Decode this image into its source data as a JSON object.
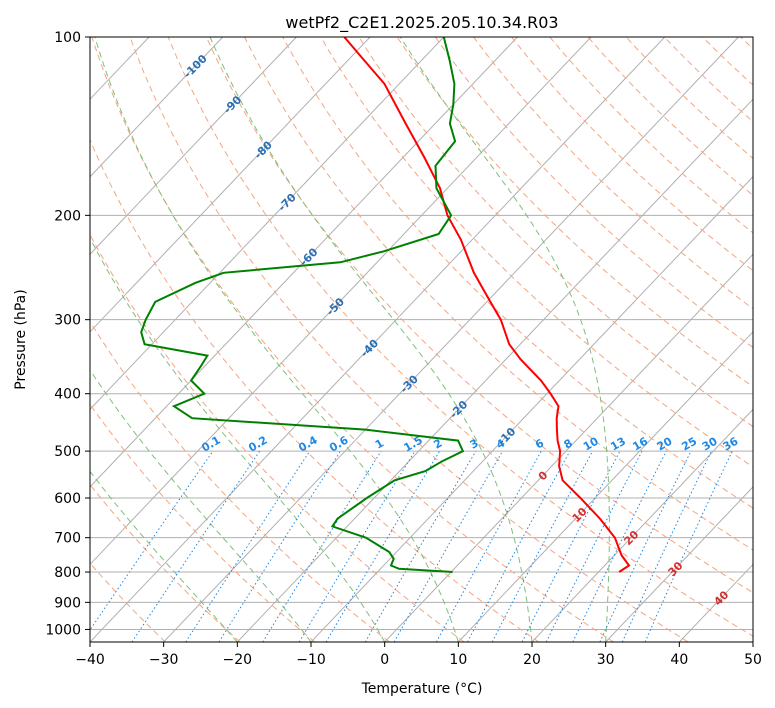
{
  "chart_data": {
    "type": "line",
    "diagram": "skew-T log-P",
    "title": "wetPf2_C2E1.2025.205.10.34.R03",
    "xlabel": "Temperature (°C)",
    "ylabel": "Pressure (hPa)",
    "xlim": [
      -40,
      50
    ],
    "ylim": [
      1050,
      100
    ],
    "y_scale": "log",
    "x_ticks": [
      -40,
      -30,
      -20,
      -10,
      0,
      10,
      20,
      30,
      40,
      50
    ],
    "x_tick_labels": [
      "−40",
      "−30",
      "−20",
      "−10",
      "0",
      "10",
      "20",
      "30",
      "40",
      "50"
    ],
    "y_ticks": [
      100,
      200,
      300,
      400,
      500,
      600,
      700,
      800,
      900,
      1000
    ],
    "y_tick_labels": [
      "100",
      "200",
      "300",
      "400",
      "500",
      "600",
      "700",
      "800",
      "900",
      "1000"
    ],
    "grid": true,
    "series": [
      {
        "color": "#ff0000",
        "points": [
          [
            800,
            22.8
          ],
          [
            780,
            23.3
          ],
          [
            750,
            21.0
          ],
          [
            700,
            17.8
          ],
          [
            650,
            13.3
          ],
          [
            600,
            8.0
          ],
          [
            560,
            3.3
          ],
          [
            530,
            1.0
          ],
          [
            500,
            -0.8
          ],
          [
            480,
            -2.5
          ],
          [
            460,
            -4.0
          ],
          [
            440,
            -5.5
          ],
          [
            420,
            -6.8
          ],
          [
            400,
            -9.5
          ],
          [
            380,
            -12.5
          ],
          [
            350,
            -18.0
          ],
          [
            330,
            -21.5
          ],
          [
            300,
            -25.8
          ],
          [
            280,
            -29.5
          ],
          [
            250,
            -35.5
          ],
          [
            220,
            -41.5
          ],
          [
            200,
            -46.5
          ],
          [
            180,
            -51.0
          ],
          [
            160,
            -57.0
          ],
          [
            140,
            -64.0
          ],
          [
            120,
            -72.0
          ],
          [
            110,
            -77.5
          ],
          [
            100,
            -83.5
          ]
        ]
      },
      {
        "color": "#008000",
        "points": [
          [
            800,
            0.2
          ],
          [
            790,
            -7.5
          ],
          [
            780,
            -9.0
          ],
          [
            760,
            -9.5
          ],
          [
            740,
            -11.0
          ],
          [
            700,
            -16.0
          ],
          [
            670,
            -22.0
          ],
          [
            650,
            -22.3
          ],
          [
            600,
            -21.0
          ],
          [
            560,
            -19.5
          ],
          [
            540,
            -16.5
          ],
          [
            520,
            -15.5
          ],
          [
            500,
            -14.0
          ],
          [
            480,
            -16.0
          ],
          [
            460,
            -30.0
          ],
          [
            440,
            -55.0
          ],
          [
            420,
            -59.0
          ],
          [
            400,
            -56.5
          ],
          [
            380,
            -60.0
          ],
          [
            360,
            -60.5
          ],
          [
            345,
            -61.0
          ],
          [
            330,
            -71.0
          ],
          [
            315,
            -73.0
          ],
          [
            300,
            -74.0
          ],
          [
            280,
            -75.0
          ],
          [
            260,
            -72.0
          ],
          [
            250,
            -69.5
          ],
          [
            240,
            -55.0
          ],
          [
            230,
            -50.5
          ],
          [
            215,
            -45.3
          ],
          [
            200,
            -46.0
          ],
          [
            180,
            -51.5
          ],
          [
            165,
            -54.5
          ],
          [
            150,
            -55.0
          ],
          [
            140,
            -58.0
          ],
          [
            130,
            -60.0
          ],
          [
            120,
            -62.5
          ],
          [
            110,
            -66.0
          ],
          [
            100,
            -70.0
          ]
        ]
      }
    ],
    "dry_adiabats": {
      "color": "#f4a582",
      "theta_K": [
        240,
        250,
        260,
        270,
        280,
        290,
        300,
        310,
        320,
        330,
        340,
        350,
        360,
        370,
        380,
        390,
        400,
        410,
        420,
        430,
        440,
        450,
        460,
        470
      ]
    },
    "moist_adiabats": {
      "color": "#7fbf7b",
      "start_temps_C": [
        -20,
        -10,
        0,
        10,
        20,
        30
      ]
    },
    "mixing_ratio_lines": {
      "color": "#1e88e5",
      "values_g_kg": [
        0.1,
        0.2,
        0.4,
        0.6,
        1,
        1.5,
        2,
        3,
        4,
        6,
        8,
        10,
        13,
        16,
        20,
        25,
        30,
        36
      ],
      "labels": [
        "0.1",
        "0.2",
        "0.4",
        "0.6",
        "1",
        "1.5",
        "2",
        "3",
        "4",
        "6",
        "8",
        "10",
        "13",
        "16",
        "20",
        "25",
        "30",
        "36"
      ],
      "label_pressure_hPa": 500
    },
    "isotherm_labels": {
      "color": "#2a6fb5",
      "labels": [
        "-100",
        "-90",
        "-80",
        "-70",
        "-60",
        "-50",
        "-40",
        "-30",
        "-20",
        "-10"
      ],
      "values_C": [
        -100,
        -90,
        -80,
        -70,
        -60,
        -50,
        -40,
        -30,
        -20,
        -10
      ],
      "pressures_hPa": [
        112,
        130,
        155,
        190,
        235,
        285,
        335,
        385,
        425,
        472
      ]
    },
    "warm_isotherm_labels": {
      "color": "#d32f2f",
      "labels": [
        "0",
        "10",
        "20",
        "30",
        "40"
      ],
      "values_C": [
        0,
        10,
        20,
        30,
        40
      ],
      "pressures_hPa": [
        550,
        640,
        700,
        790,
        885
      ]
    }
  }
}
